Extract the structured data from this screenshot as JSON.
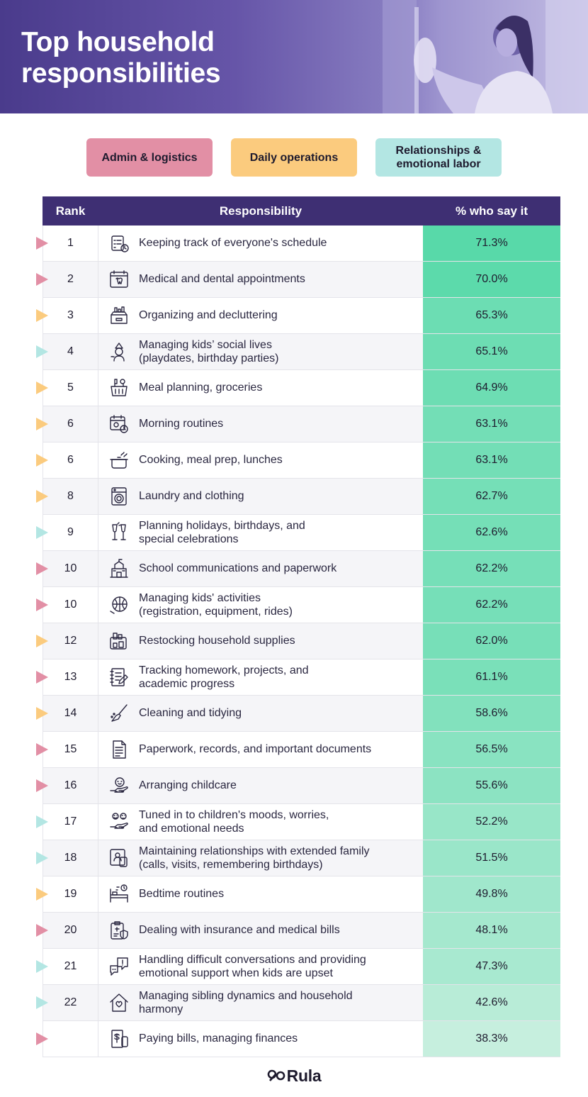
{
  "header": {
    "title": "Top household responsibilities"
  },
  "legend": [
    {
      "label": "Admin & logistics",
      "category": "admin",
      "color": "#e28fa5"
    },
    {
      "label": "Daily operations",
      "category": "daily",
      "color": "#fbcb7e"
    },
    {
      "label": "Relationships & emotional labor",
      "category": "relationships",
      "color": "#b3e6e3"
    }
  ],
  "table": {
    "headers": {
      "rank": "Rank",
      "responsibility": "Responsibility",
      "pct": "% who say it"
    }
  },
  "chart_data": {
    "type": "table",
    "title": "Top household responsibilities",
    "columns": [
      "Rank",
      "Responsibility",
      "% who say it"
    ],
    "rows": [
      {
        "rank": "1",
        "label": "Keeping track of everyone's schedule",
        "pct": "71.3%",
        "value": 71.3,
        "category": "admin",
        "icon": "calendar-checklist-icon"
      },
      {
        "rank": "2",
        "label": "Medical and dental appointments",
        "pct": "70.0%",
        "value": 70.0,
        "category": "admin",
        "icon": "tooth-calendar-icon"
      },
      {
        "rank": "3",
        "label": "Organizing and decluttering",
        "pct": "65.3%",
        "value": 65.3,
        "category": "daily",
        "icon": "storage-box-icon"
      },
      {
        "rank": "4",
        "label": "Managing kids’ social lives\n(playdates, birthday parties)",
        "pct": "65.1%",
        "value": 65.1,
        "category": "relationships",
        "icon": "party-child-icon"
      },
      {
        "rank": "5",
        "label": "Meal planning, groceries",
        "pct": "64.9%",
        "value": 64.9,
        "category": "daily",
        "icon": "grocery-basket-icon"
      },
      {
        "rank": "6",
        "label": "Morning routines",
        "pct": "63.1%",
        "value": 63.1,
        "category": "daily",
        "icon": "sun-clock-icon"
      },
      {
        "rank": "6",
        "label": "Cooking, meal prep, lunches",
        "pct": "63.1%",
        "value": 63.1,
        "category": "daily",
        "icon": "cooking-pot-icon"
      },
      {
        "rank": "8",
        "label": "Laundry and clothing",
        "pct": "62.7%",
        "value": 62.7,
        "category": "daily",
        "icon": "washing-machine-icon"
      },
      {
        "rank": "9",
        "label": "Planning holidays, birthdays, and\nspecial celebrations",
        "pct": "62.6%",
        "value": 62.6,
        "category": "relationships",
        "icon": "toast-glasses-icon"
      },
      {
        "rank": "10",
        "label": "School communications and paperwork",
        "pct": "62.2%",
        "value": 62.2,
        "category": "admin",
        "icon": "school-building-icon"
      },
      {
        "rank": "10",
        "label": "Managing kids' activities\n(registration, equipment, rides)",
        "pct": "62.2%",
        "value": 62.2,
        "category": "admin",
        "icon": "sports-ball-icon"
      },
      {
        "rank": "12",
        "label": "Restocking household supplies",
        "pct": "62.0%",
        "value": 62.0,
        "category": "daily",
        "icon": "supplies-box-icon"
      },
      {
        "rank": "13",
        "label": "Tracking homework, projects, and\nacademic progress",
        "pct": "61.1%",
        "value": 61.1,
        "category": "admin",
        "icon": "notebook-pen-icon"
      },
      {
        "rank": "14",
        "label": "Cleaning and tidying",
        "pct": "58.6%",
        "value": 58.6,
        "category": "daily",
        "icon": "broom-icon"
      },
      {
        "rank": "15",
        "label": "Paperwork, records, and important documents",
        "pct": "56.5%",
        "value": 56.5,
        "category": "admin",
        "icon": "document-icon"
      },
      {
        "rank": "16",
        "label": "Arranging childcare",
        "pct": "55.6%",
        "value": 55.6,
        "category": "admin",
        "icon": "hand-child-icon"
      },
      {
        "rank": "17",
        "label": "Tuned in to children's moods, worries,\nand emotional needs",
        "pct": "52.2%",
        "value": 52.2,
        "category": "relationships",
        "icon": "moods-hand-icon"
      },
      {
        "rank": "18",
        "label": "Maintaining relationships with extended family\n(calls, visits, remembering birthdays)",
        "pct": "51.5%",
        "value": 51.5,
        "category": "relationships",
        "icon": "video-call-icon"
      },
      {
        "rank": "19",
        "label": "Bedtime routines",
        "pct": "49.8%",
        "value": 49.8,
        "category": "daily",
        "icon": "bed-clock-icon"
      },
      {
        "rank": "20",
        "label": "Dealing with insurance and medical bills",
        "pct": "48.1%",
        "value": 48.1,
        "category": "admin",
        "icon": "medical-clipboard-icon"
      },
      {
        "rank": "21",
        "label": "Handling difficult conversations and providing\nemotional support when kids are upset",
        "pct": "47.3%",
        "value": 47.3,
        "category": "relationships",
        "icon": "speech-bubbles-icon"
      },
      {
        "rank": "22",
        "label": "Managing sibling dynamics and household\nharmony",
        "pct": "42.6%",
        "value": 42.6,
        "category": "relationships",
        "icon": "house-heart-icon"
      },
      {
        "rank": "",
        "label": "Paying bills, managing finances",
        "pct": "38.3%",
        "value": 38.3,
        "category": "admin",
        "icon": "bill-phone-icon"
      }
    ]
  },
  "colors": {
    "admin": "#e28fa5",
    "daily": "#fbcb7e",
    "relationships": "#b3e6e3",
    "header_bg": "#3e2f73",
    "pct_high": "#58d9a9",
    "pct_low": "#c6efde"
  },
  "footer": {
    "brand": "Rula"
  }
}
